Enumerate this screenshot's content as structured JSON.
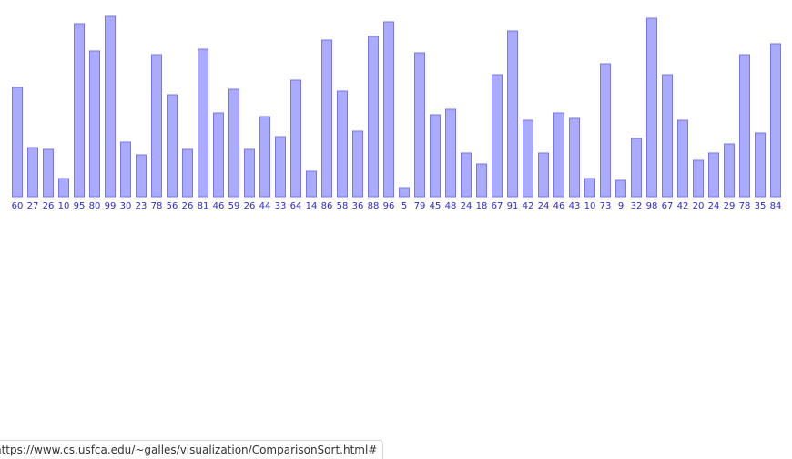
{
  "bars": [
    60,
    27,
    26,
    10,
    95,
    80,
    99,
    30,
    23,
    78,
    56,
    26,
    81,
    46,
    59,
    26,
    44,
    33,
    64,
    14,
    86,
    58,
    36,
    88,
    96,
    5,
    79,
    45,
    48,
    24,
    18,
    67,
    91,
    42,
    24,
    46,
    43,
    10,
    73,
    9,
    32,
    98,
    67,
    42,
    20,
    24,
    29,
    78,
    35,
    84
  ],
  "status_url": "https://www.cs.usfca.edu/~galles/visualization/ComparisonSort.html#"
}
